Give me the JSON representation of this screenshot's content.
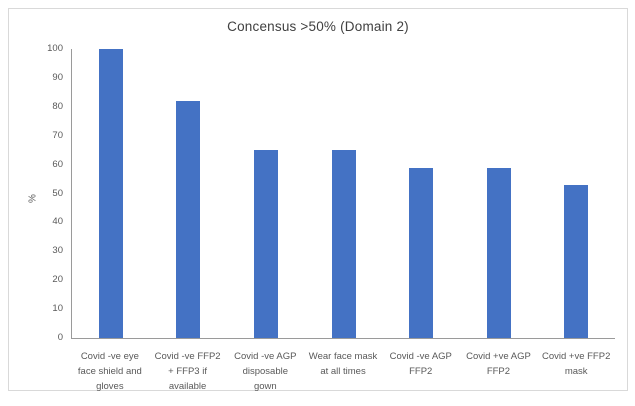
{
  "chart": {
    "title": "Concensus >50% (Domain 2)",
    "ylabel": "%"
  },
  "chart_data": {
    "type": "bar",
    "title": "Concensus >50% (Domain 2)",
    "categories": [
      "Covid -ve eye face shield and gloves",
      "Covid -ve  FFP2 + FFP3 if available",
      "Covid -ve AGP disposable gown",
      "Wear face mask at all times",
      "Covid -ve AGP FFP2",
      "Covid +ve AGP FFP2",
      "Covid +ve FFP2 mask"
    ],
    "tick_labels": [
      "Covid -ve eye\nface shield and\ngloves",
      "Covid -ve  FFP2\n+ FFP3 if\navailable",
      "Covid -ve AGP\ndisposable\ngown",
      "Wear face mask\nat all times",
      "Covid -ve AGP\nFFP2",
      "Covid +ve AGP\nFFP2",
      "Covid +ve FFP2\nmask"
    ],
    "values": [
      100,
      82,
      65,
      65,
      59,
      59,
      53
    ],
    "xlabel": "",
    "ylabel": "%",
    "ylim": [
      0,
      100
    ],
    "yticks": [
      0,
      10,
      20,
      30,
      40,
      50,
      60,
      70,
      80,
      90,
      100
    ],
    "bar_color": "#4472C4",
    "axis_color": "#9A9A9A",
    "text_color": "#595959",
    "grid": false,
    "legend": false
  }
}
